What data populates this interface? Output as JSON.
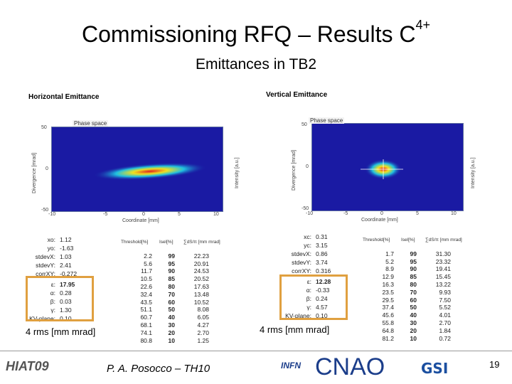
{
  "slide": {
    "title_main": "Commissioning RFQ – Results C",
    "title_sup": "4+",
    "subtitle": "Emittances in TB2",
    "author": "P. A. Posocco – TH10",
    "page_number": "19"
  },
  "horizontal": {
    "title": "Horizontal Emittance",
    "plot_label": "Phase space",
    "ylabel": "Divergence [mrad]",
    "xlabel": "Coordinate [mm]",
    "intensity_label": "Intensity [a.u.]",
    "y_ticks": [
      "50",
      "0",
      "-50"
    ],
    "x_ticks": [
      "-10",
      "-5",
      "0",
      "5",
      "10"
    ],
    "stats": [
      {
        "k": "xo:",
        "v": "1.12"
      },
      {
        "k": "yo:",
        "v": "-1.63"
      },
      {
        "k": "stdevX:",
        "v": "1.03"
      },
      {
        "k": "stdevY:",
        "v": "2.41"
      },
      {
        "k": "corrXY:",
        "v": "-0.272"
      }
    ],
    "twiss": [
      {
        "k": "ε:",
        "v": "17.95"
      },
      {
        "k": "α:",
        "v": "0.28"
      },
      {
        "k": "β:",
        "v": "0.03"
      },
      {
        "k": "γ:",
        "v": "1.30"
      },
      {
        "k": "KV-plane:",
        "v": "0.10"
      }
    ],
    "table_headers": [
      "Threshold[%]",
      "Isel[%]",
      "∑dS/π [mm mrad]"
    ],
    "table": [
      [
        "2.2",
        "99",
        "22.23"
      ],
      [
        "5.6",
        "95",
        "20.91"
      ],
      [
        "11.7",
        "90",
        "24.53"
      ],
      [
        "10.5",
        "85",
        "20.52"
      ],
      [
        "22.6",
        "80",
        "17.63"
      ],
      [
        "32.4",
        "70",
        "13.48"
      ],
      [
        "43.5",
        "60",
        "10.52"
      ],
      [
        "51.1",
        "50",
        "8.08"
      ],
      [
        "60.7",
        "40",
        "6.05"
      ],
      [
        "68.1",
        "30",
        "4.27"
      ],
      [
        "74.1",
        "20",
        "2.70"
      ],
      [
        "80.8",
        "10",
        "1.25"
      ]
    ],
    "rms_label": "4 rms [mm mrad]"
  },
  "vertical": {
    "title": "Vertical Emittance",
    "plot_label": "Phase space",
    "ylabel": "Divergence [mrad]",
    "xlabel": "Coordinate [mm]",
    "intensity_label": "Intensity [a.u.]",
    "y_ticks": [
      "50",
      "0",
      "-50"
    ],
    "x_ticks": [
      "-10",
      "-5",
      "0",
      "5",
      "10"
    ],
    "stats": [
      {
        "k": "xc:",
        "v": "0.31"
      },
      {
        "k": "yc:",
        "v": "3.15"
      },
      {
        "k": "stdevX:",
        "v": "0.86"
      },
      {
        "k": "stdevY:",
        "v": "3.74"
      },
      {
        "k": "corrXY:",
        "v": "0.316"
      }
    ],
    "twiss": [
      {
        "k": "ε:",
        "v": "12.28"
      },
      {
        "k": "α:",
        "v": "-0.33"
      },
      {
        "k": "β:",
        "v": "0.24"
      },
      {
        "k": "γ:",
        "v": "4.57"
      },
      {
        "k": "KV-plane:",
        "v": "0.10"
      }
    ],
    "table_headers": [
      "Threshold[%]",
      "Isel[%]",
      "∑dS/π [mm mrad]"
    ],
    "table": [
      [
        "1.7",
        "99",
        "31.30"
      ],
      [
        "5.2",
        "95",
        "23.32"
      ],
      [
        "8.9",
        "90",
        "19.41"
      ],
      [
        "12.9",
        "85",
        "15.45"
      ],
      [
        "16.3",
        "80",
        "13.22"
      ],
      [
        "23.5",
        "70",
        "9.93"
      ],
      [
        "29.5",
        "60",
        "7.50"
      ],
      [
        "37.4",
        "50",
        "5.52"
      ],
      [
        "45.6",
        "40",
        "4.01"
      ],
      [
        "55.8",
        "30",
        "2.70"
      ],
      [
        "64.8",
        "20",
        "1.84"
      ],
      [
        "81.2",
        "10",
        "0.72"
      ]
    ],
    "rms_label": "4 rms [mm mrad]"
  },
  "logos": {
    "hiat": "HIAT09",
    "infn": "INFN",
    "cnao": "CNAO",
    "gsi": "GSI"
  },
  "colors": {
    "plot_background": "#1a1aa3",
    "box_border": "#e0a040",
    "cnao_blue": "#1b3d8a",
    "gsi_blue": "#1b4fa0"
  }
}
